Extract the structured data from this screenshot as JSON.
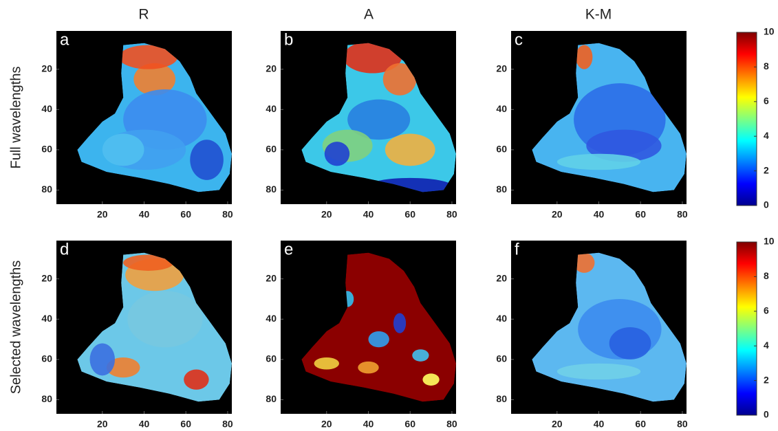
{
  "figure": {
    "columns": [
      "R",
      "A",
      "K-M"
    ],
    "rows": [
      "Full  wavelengths",
      "Selected  wavelengths"
    ],
    "panels": [
      "a",
      "b",
      "c",
      "d",
      "e",
      "f"
    ],
    "xlim": [
      -2,
      82
    ],
    "ylim": [
      1,
      87
    ],
    "xticks": [
      20,
      40,
      60,
      80
    ],
    "yticks": [
      20,
      40,
      60,
      80
    ],
    "colorbar": {
      "clim": [
        0,
        10
      ],
      "ticks": [
        0,
        2,
        4,
        6,
        8,
        10
      ]
    }
  }
}
